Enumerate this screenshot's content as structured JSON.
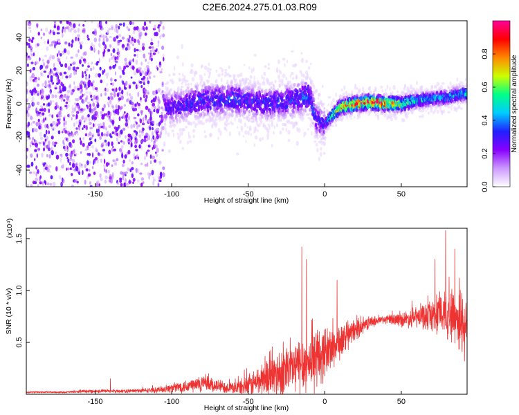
{
  "title": "C2E6.2024.275.01.03.R09",
  "chart_data": [
    {
      "type": "heatmap",
      "xlabel": "Height of straight line (km)",
      "ylabel": "Frequency (Hz)",
      "xlim": [
        -195,
        93
      ],
      "ylim": [
        -50,
        50
      ],
      "x_ticks": [
        -150,
        -100,
        -50,
        0,
        50
      ],
      "y_ticks": [
        -40,
        -20,
        0,
        20,
        40
      ],
      "colorbar": {
        "label": "Normalized spectral amplitude",
        "range": [
          0,
          1
        ],
        "ticks": [
          "0.0",
          "0.2",
          "0.4",
          "0.6",
          "0.8"
        ],
        "tick_values": [
          0,
          0.2,
          0.4,
          0.6,
          0.8
        ],
        "colors": [
          "#ffffff",
          "#cc99ff",
          "#8800ff",
          "#2020ff",
          "#00ccff",
          "#00ff88",
          "#ccff00",
          "#ff8800",
          "#ff0000",
          "#ff0099"
        ]
      },
      "ridge": {
        "x": [
          -160,
          -140,
          -120,
          -100,
          -80,
          -60,
          -40,
          -20,
          -10,
          -5,
          0,
          10,
          20,
          30,
          40,
          50,
          60,
          70,
          80,
          90
        ],
        "freq": [
          -2,
          0,
          -3,
          -2,
          2,
          3,
          0,
          2,
          5,
          -10,
          -12,
          -2,
          0,
          1,
          0,
          0,
          2,
          3,
          4,
          6
        ],
        "amplitude": [
          0.15,
          0.18,
          0.25,
          0.3,
          0.35,
          0.35,
          0.32,
          0.35,
          0.4,
          0.3,
          0.3,
          0.85,
          0.9,
          0.95,
          0.9,
          0.7,
          0.5,
          0.45,
          0.45,
          0.5
        ]
      }
    },
    {
      "type": "line",
      "xlabel": "Height of straight line (km)",
      "ylabel": "SNR (10 * v/v)",
      "y_multiplier": "(x10⁴)",
      "xlim": [
        -195,
        93
      ],
      "ylim": [
        0,
        1.6
      ],
      "x_ticks": [
        -150,
        -100,
        -50,
        0,
        50
      ],
      "y_ticks": [
        0.5,
        1.0,
        1.5
      ],
      "y_tick_labels": [
        "0.5",
        "1.0",
        "1.5"
      ],
      "color": "#ee3333",
      "envelope": {
        "x": [
          -195,
          -170,
          -150,
          -130,
          -110,
          -100,
          -90,
          -80,
          -70,
          -60,
          -50,
          -40,
          -30,
          -20,
          -15,
          -10,
          -5,
          0,
          10,
          20,
          30,
          40,
          50,
          60,
          70,
          80,
          85,
          90,
          93
        ],
        "base": [
          0.02,
          0.02,
          0.03,
          0.03,
          0.04,
          0.06,
          0.08,
          0.1,
          0.08,
          0.06,
          0.08,
          0.15,
          0.2,
          0.25,
          0.3,
          0.3,
          0.35,
          0.4,
          0.5,
          0.62,
          0.7,
          0.72,
          0.72,
          0.74,
          0.76,
          0.78,
          0.75,
          0.7,
          0.65
        ],
        "noise": [
          0.01,
          0.01,
          0.02,
          0.02,
          0.03,
          0.05,
          0.08,
          0.1,
          0.08,
          0.06,
          0.12,
          0.2,
          0.3,
          0.3,
          0.35,
          0.3,
          0.35,
          0.3,
          0.2,
          0.12,
          0.06,
          0.05,
          0.08,
          0.12,
          0.18,
          0.3,
          0.35,
          0.4,
          0.4
        ]
      },
      "peaks": [
        {
          "x": -140,
          "y": 0.15
        },
        {
          "x": -15,
          "y": 1.42
        },
        {
          "x": -12,
          "y": 1.3
        },
        {
          "x": 8,
          "y": 1.1
        },
        {
          "x": 79,
          "y": 1.58
        },
        {
          "x": 72,
          "y": 1.3
        },
        {
          "x": 85,
          "y": 1.4
        },
        {
          "x": 88,
          "y": 1.12
        }
      ]
    }
  ]
}
